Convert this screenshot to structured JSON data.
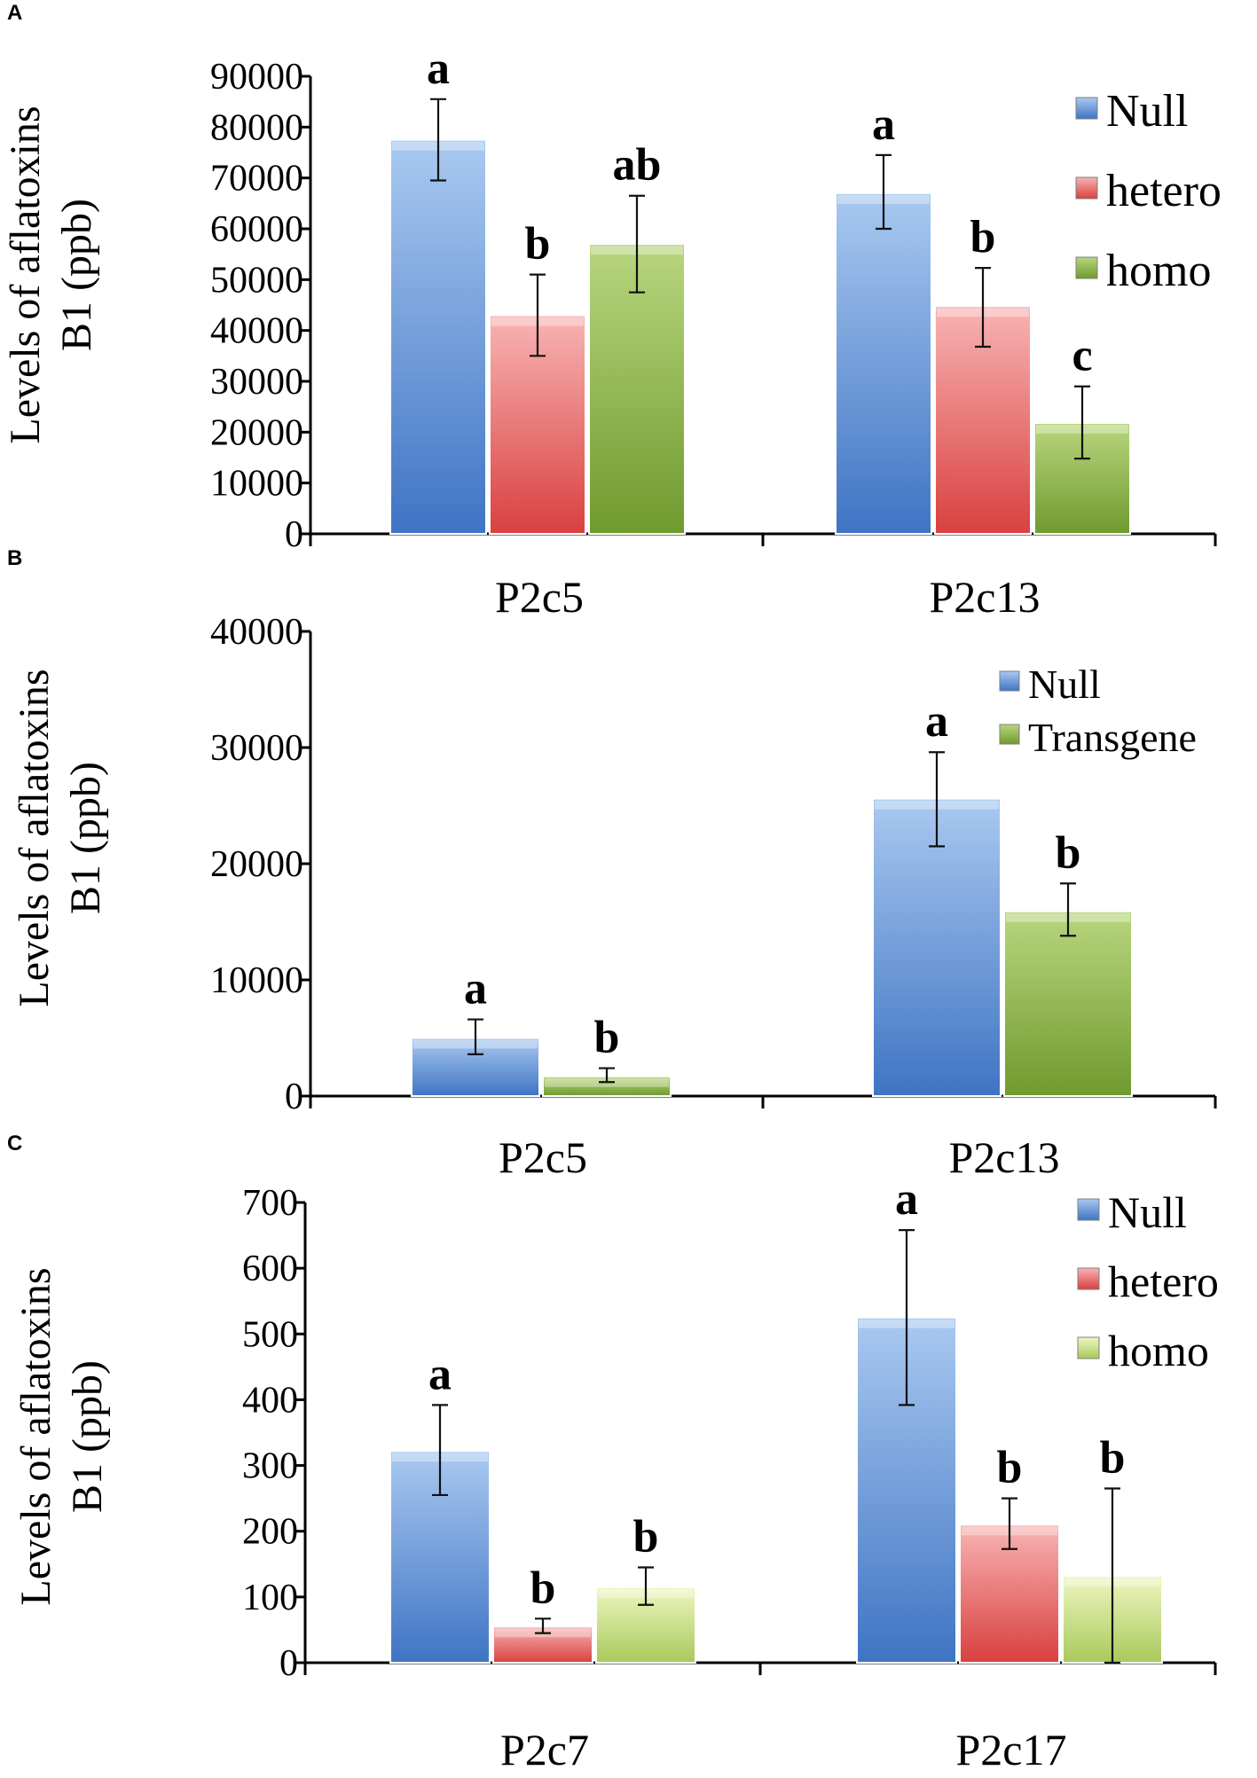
{
  "colors": {
    "null_blue": "#5b8fd6",
    "hetero_red": "#e46a6a",
    "homo_green": "#88b04b",
    "homo_light_green": "#c3da86"
  },
  "chart_data": [
    {
      "panel": "A",
      "type": "bar",
      "ylabel_line1": "Levels of aflatoxins",
      "ylabel_line2": "B1 (ppb)",
      "ylim": [
        0,
        90000
      ],
      "yticks": [
        "0",
        "10000",
        "20000",
        "30000",
        "40000",
        "50000",
        "60000",
        "70000",
        "80000",
        "90000"
      ],
      "categories": [
        "P2c5",
        "P2c13"
      ],
      "series": [
        {
          "name": "Null",
          "color": "null_blue",
          "values": [
            77500,
            67000
          ],
          "err_high": [
            85500,
            74500
          ],
          "err_low": [
            69500,
            60000
          ],
          "sig": [
            "a",
            "a"
          ]
        },
        {
          "name": "hetero",
          "color": "hetero_red",
          "values": [
            43000,
            44800
          ],
          "err_high": [
            51000,
            52300
          ],
          "err_low": [
            35000,
            36800
          ],
          "sig": [
            "b",
            "b"
          ]
        },
        {
          "name": "homo",
          "color": "homo_green",
          "values": [
            57000,
            21800
          ],
          "err_high": [
            66500,
            29000
          ],
          "err_low": [
            47500,
            14800
          ],
          "sig": [
            "ab",
            "c"
          ]
        }
      ],
      "legend": [
        "Null",
        "hetero",
        "homo"
      ]
    },
    {
      "panel": "B",
      "type": "bar",
      "ylabel_line1": "Levels of aflatoxins",
      "ylabel_line2": "B1 (ppb)",
      "ylim": [
        0,
        40000
      ],
      "yticks": [
        "0",
        "10000",
        "20000",
        "30000",
        "40000"
      ],
      "categories": [
        "P2c5",
        "P2c13"
      ],
      "series": [
        {
          "name": "Null",
          "color": "null_blue",
          "values": [
            5000,
            25600
          ],
          "err_high": [
            6600,
            29600
          ],
          "err_low": [
            3600,
            21500
          ],
          "sig": [
            "a",
            "a"
          ]
        },
        {
          "name": "Transgene",
          "color": "homo_green",
          "values": [
            1700,
            15900
          ],
          "err_high": [
            2400,
            18300
          ],
          "err_low": [
            1200,
            13800
          ],
          "sig": [
            "b",
            "b"
          ]
        }
      ],
      "legend": [
        "Null",
        "Transgene"
      ]
    },
    {
      "panel": "C",
      "type": "bar",
      "ylabel_line1": "Levels of aflatoxins",
      "ylabel_line2": "B1 (ppb)",
      "ylim": [
        0,
        700
      ],
      "yticks": [
        "0",
        "100",
        "200",
        "300",
        "400",
        "500",
        "600",
        "700"
      ],
      "categories": [
        "P2c7",
        "P2c17"
      ],
      "series": [
        {
          "name": "Null",
          "color": "null_blue",
          "values": [
            322,
            525
          ],
          "err_high": [
            392,
            658
          ],
          "err_low": [
            255,
            392
          ],
          "sig": [
            "a",
            "a"
          ]
        },
        {
          "name": "hetero",
          "color": "hetero_red",
          "values": [
            55,
            210
          ],
          "err_high": [
            67,
            250
          ],
          "err_low": [
            45,
            173
          ],
          "sig": [
            "b",
            "b"
          ]
        },
        {
          "name": "homo",
          "color": "homo_light_green",
          "values": [
            115,
            132
          ],
          "err_high": [
            145,
            265
          ],
          "err_low": [
            88,
            0
          ],
          "sig": [
            "b",
            "b"
          ]
        }
      ],
      "legend": [
        "Null",
        "hetero",
        "homo"
      ]
    }
  ]
}
